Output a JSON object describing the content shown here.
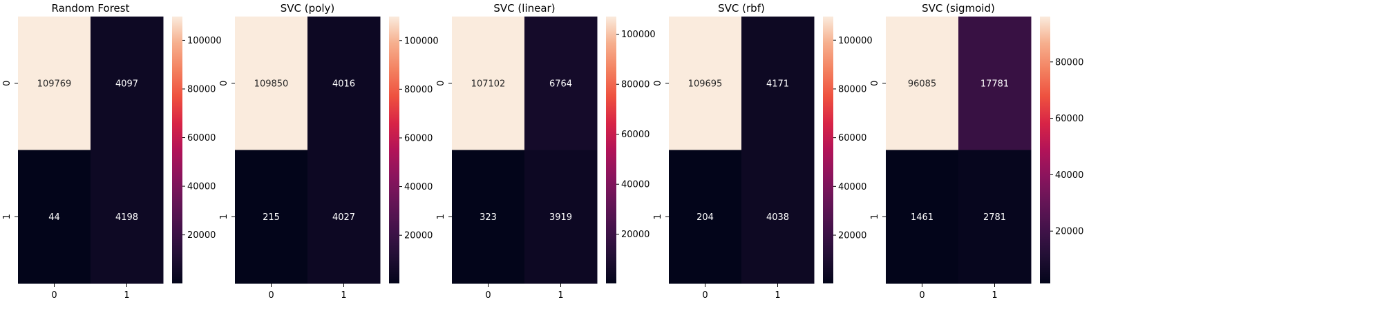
{
  "figure": {
    "panels": [
      {
        "title": "Random Forest"
      },
      {
        "title": "SVC (poly)"
      },
      {
        "title": "SVC (linear)"
      },
      {
        "title": "SVC (rbf)"
      },
      {
        "title": "SVC (sigmoid)"
      }
    ]
  },
  "chart_data": [
    {
      "type": "heatmap",
      "title": "Random Forest",
      "x_categories": [
        "0",
        "1"
      ],
      "y_categories": [
        "0",
        "1"
      ],
      "values": [
        [
          109769,
          4097
        ],
        [
          44,
          4198
        ]
      ],
      "colorbar": {
        "vmin": 44,
        "vmax": 109769,
        "ticks": [
          20000,
          40000,
          60000,
          80000,
          100000
        ]
      },
      "colormap": "rocket",
      "annotations": true
    },
    {
      "type": "heatmap",
      "title": "SVC (poly)",
      "x_categories": [
        "0",
        "1"
      ],
      "y_categories": [
        "0",
        "1"
      ],
      "values": [
        [
          109850,
          4016
        ],
        [
          215,
          4027
        ]
      ],
      "colorbar": {
        "vmin": 215,
        "vmax": 109850,
        "ticks": [
          20000,
          40000,
          60000,
          80000,
          100000
        ]
      },
      "colormap": "rocket",
      "annotations": true
    },
    {
      "type": "heatmap",
      "title": "SVC (linear)",
      "x_categories": [
        "0",
        "1"
      ],
      "y_categories": [
        "0",
        "1"
      ],
      "values": [
        [
          107102,
          6764
        ],
        [
          323,
          3919
        ]
      ],
      "colorbar": {
        "vmin": 323,
        "vmax": 107102,
        "ticks": [
          20000,
          40000,
          60000,
          80000,
          100000
        ]
      },
      "colormap": "rocket",
      "annotations": true
    },
    {
      "type": "heatmap",
      "title": "SVC (rbf)",
      "x_categories": [
        "0",
        "1"
      ],
      "y_categories": [
        "0",
        "1"
      ],
      "values": [
        [
          109695,
          4171
        ],
        [
          204,
          4038
        ]
      ],
      "colorbar": {
        "vmin": 204,
        "vmax": 109695,
        "ticks": [
          20000,
          40000,
          60000,
          80000,
          100000
        ]
      },
      "colormap": "rocket",
      "annotations": true
    },
    {
      "type": "heatmap",
      "title": "SVC (sigmoid)",
      "x_categories": [
        "0",
        "1"
      ],
      "y_categories": [
        "0",
        "1"
      ],
      "values": [
        [
          96085,
          17781
        ],
        [
          1461,
          2781
        ]
      ],
      "colorbar": {
        "vmin": 1461,
        "vmax": 96085,
        "ticks": [
          20000,
          40000,
          60000,
          80000
        ]
      },
      "colormap": "rocket",
      "annotations": true
    }
  ]
}
